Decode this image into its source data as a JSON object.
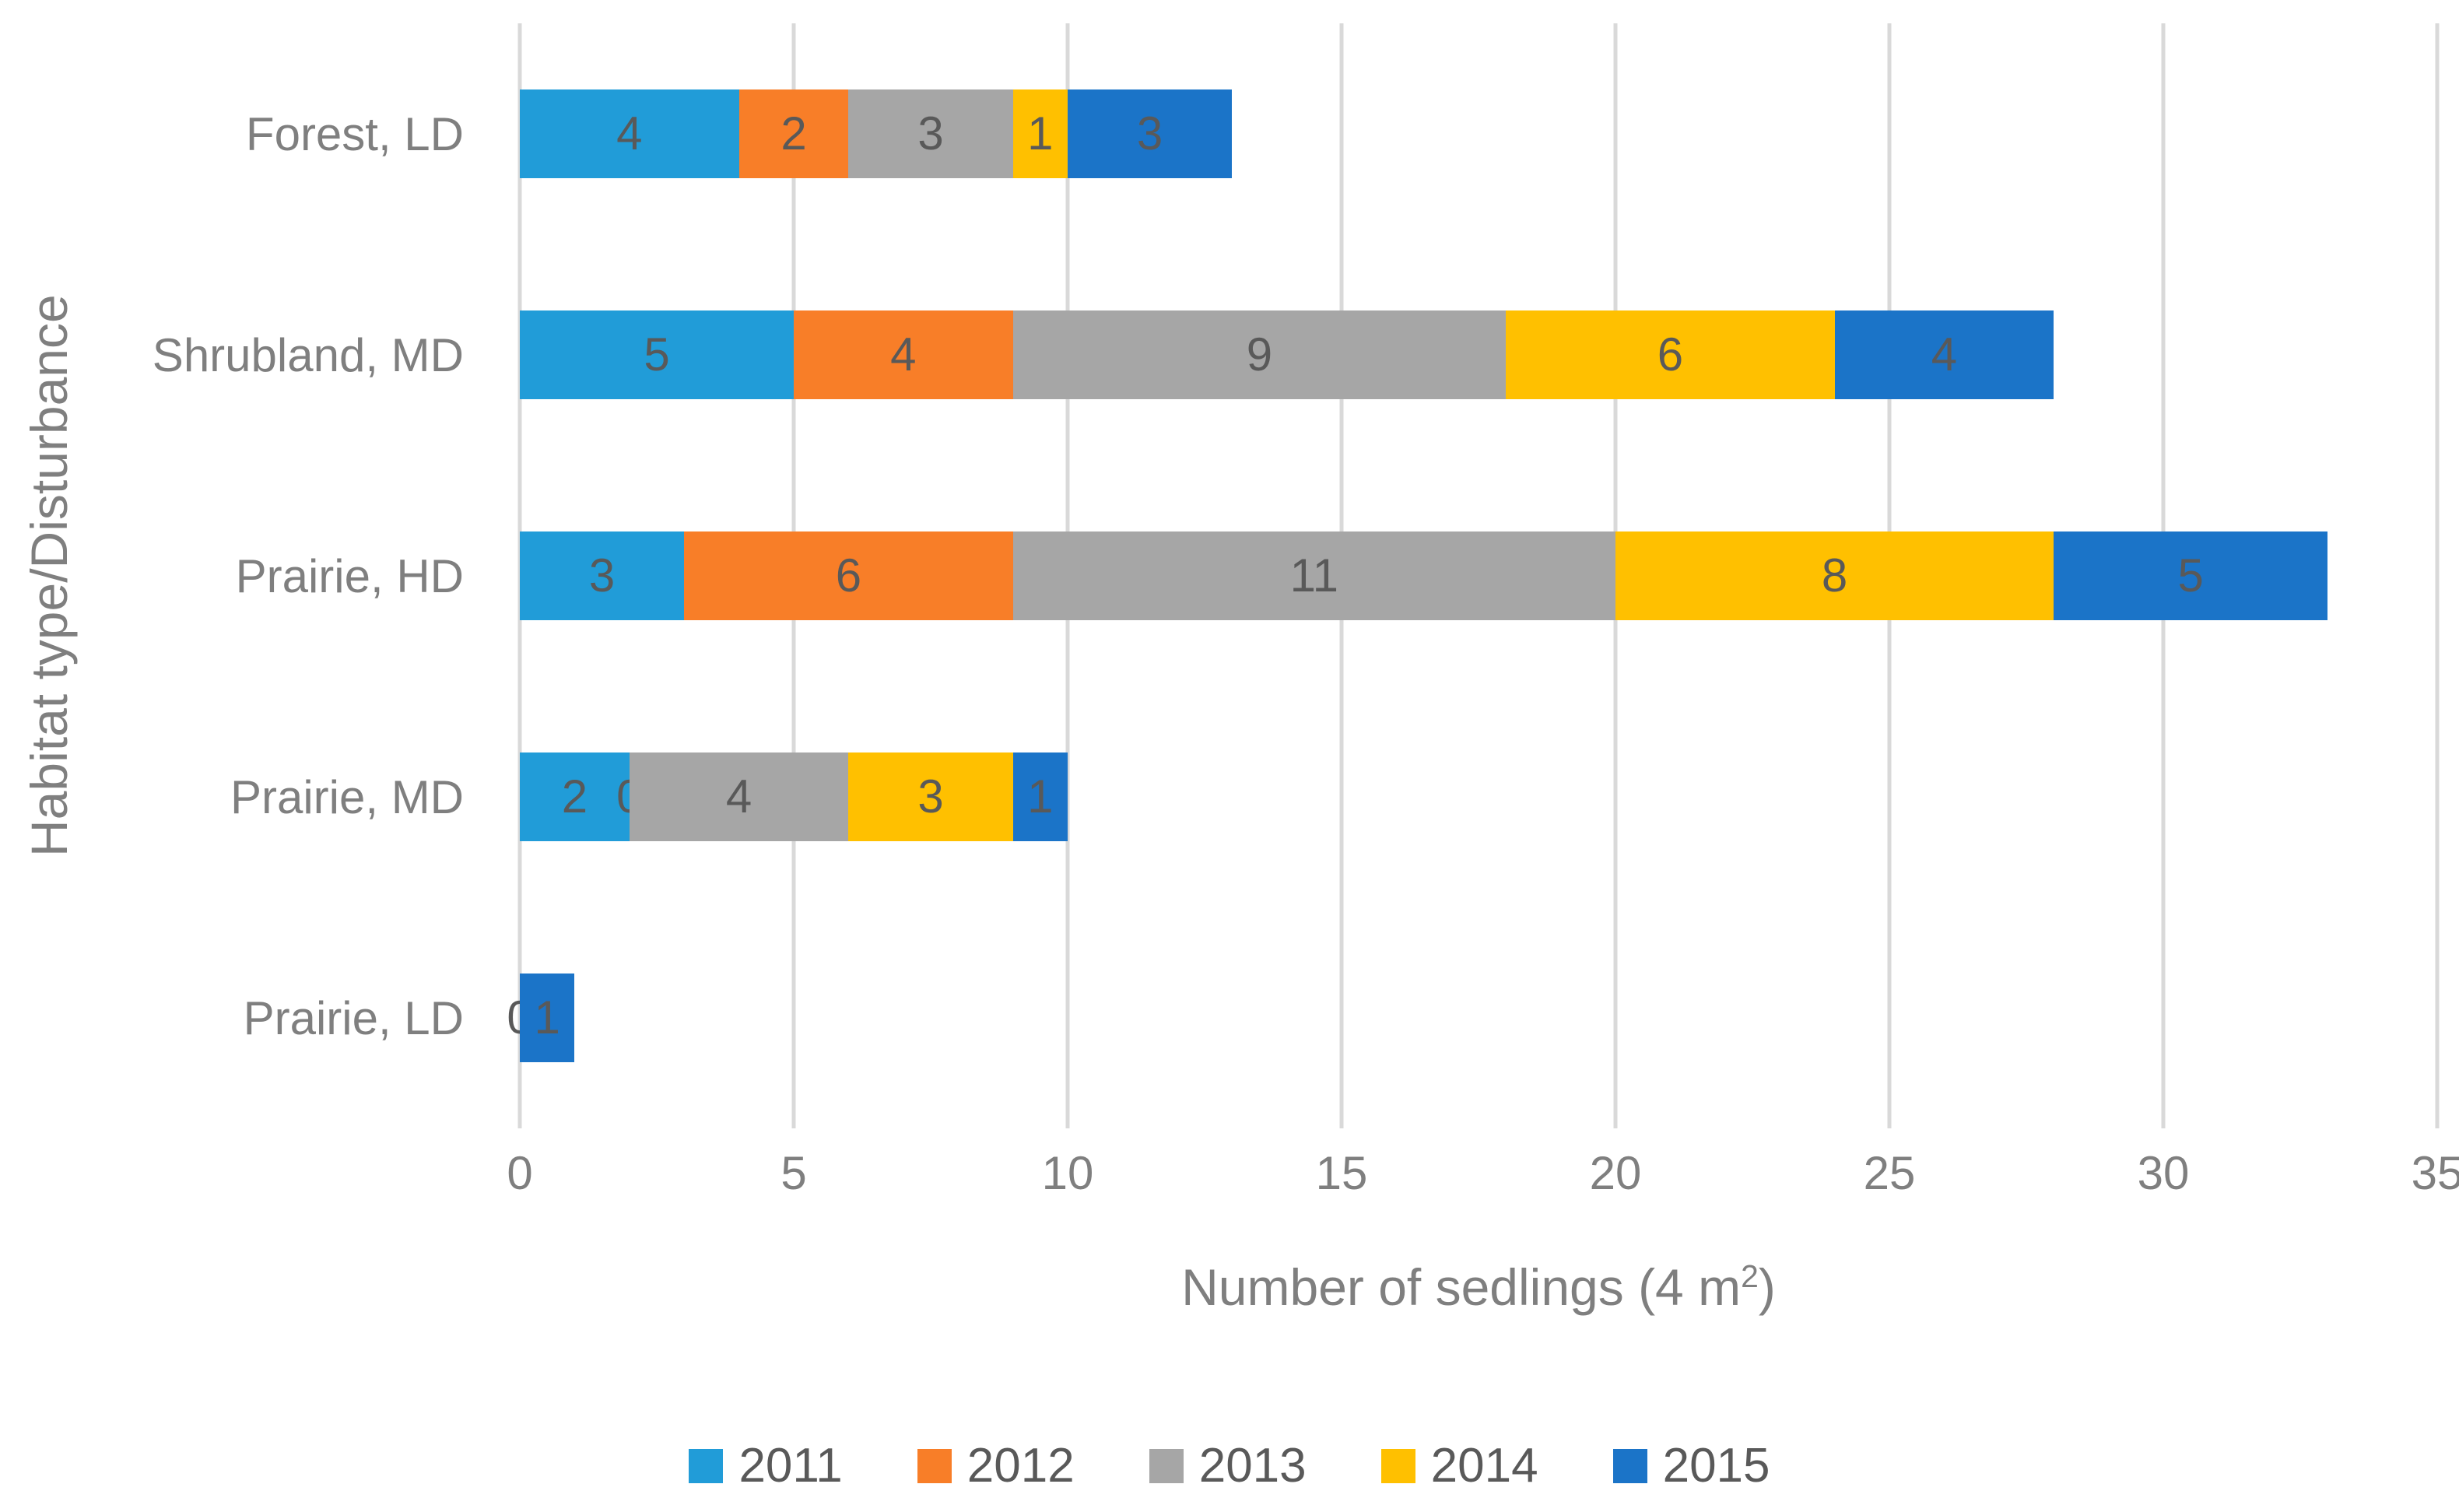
{
  "chart_data": {
    "type": "bar",
    "orientation": "horizontal",
    "stacked": true,
    "title": "",
    "categories": [
      "Forest, LD",
      "Shrubland, MD",
      "Prairie, HD",
      "Prairie, MD",
      "Prairie, LD"
    ],
    "series": [
      {
        "name": "2011",
        "color": "#219CD8",
        "values": [
          4,
          5,
          3,
          2,
          0
        ]
      },
      {
        "name": "2012",
        "color": "#F87E28",
        "values": [
          2,
          4,
          6,
          0,
          0
        ]
      },
      {
        "name": "2013",
        "color": "#A6A6A6",
        "values": [
          3,
          9,
          11,
          4,
          0
        ]
      },
      {
        "name": "2014",
        "color": "#FFC000",
        "values": [
          1,
          6,
          8,
          3,
          0
        ]
      },
      {
        "name": "2015",
        "color": "#1B74C8",
        "values": [
          3,
          4,
          5,
          1,
          1
        ]
      }
    ],
    "totals": [
      13,
      28,
      33,
      10,
      1
    ],
    "x_ticks": [
      0,
      5,
      10,
      15,
      20,
      25,
      30,
      35
    ],
    "xlim": [
      0,
      35
    ],
    "xlabel_prefix": "Number of sedlings (4 m",
    "xlabel_sup": "2",
    "xlabel_suffix": ")",
    "ylabel": "Habitat type/Disturbance",
    "grid": true,
    "legend_position": "bottom",
    "data_labels_shown": true,
    "colors": {
      "gridline": "#D9D9D9",
      "axis_text": "#7F7F7F",
      "data_label": "#595959",
      "legend_text": "#595959",
      "background": "#FFFFFF"
    }
  }
}
